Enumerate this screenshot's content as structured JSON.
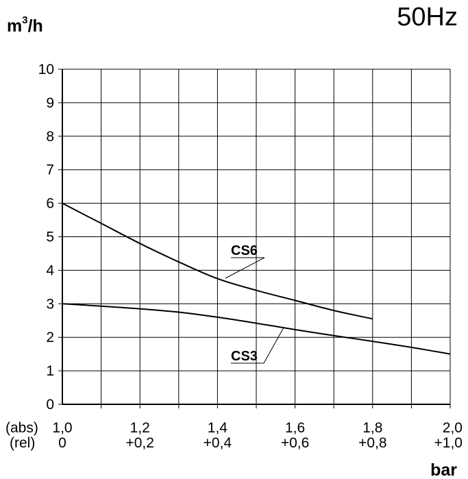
{
  "header": {
    "frequency": "50Hz"
  },
  "chart_data": {
    "type": "line",
    "ylabel_base": "m",
    "ylabel_sup": "3",
    "ylabel_tail": "/h",
    "xlabel": "bar",
    "x_abs_label": "(abs)",
    "x_rel_label": "(rel)",
    "xlim": [
      1.0,
      2.0
    ],
    "ylim": [
      0,
      10
    ],
    "grid": true,
    "y_ticks": [
      0,
      1,
      2,
      3,
      4,
      5,
      6,
      7,
      8,
      9,
      10
    ],
    "x_ticks": [
      {
        "value": 1.0,
        "abs": "1,0",
        "rel": "0"
      },
      {
        "value": 1.2,
        "abs": "1,2",
        "rel": "+0,2"
      },
      {
        "value": 1.4,
        "abs": "1,4",
        "rel": "+0,4"
      },
      {
        "value": 1.6,
        "abs": "1,6",
        "rel": "+0,6"
      },
      {
        "value": 1.8,
        "abs": "1,8",
        "rel": "+0,8"
      },
      {
        "value": 2.0,
        "abs": "2,0",
        "rel": "+1,0"
      }
    ],
    "series": [
      {
        "name": "CS6",
        "x": [
          1.0,
          1.1,
          1.2,
          1.3,
          1.4,
          1.5,
          1.6,
          1.7,
          1.8
        ],
        "y": [
          6.0,
          5.4,
          4.8,
          4.25,
          3.75,
          3.4,
          3.1,
          2.8,
          2.55
        ]
      },
      {
        "name": "CS3",
        "x": [
          1.0,
          1.1,
          1.2,
          1.3,
          1.4,
          1.5,
          1.6,
          1.7,
          1.8,
          1.9,
          2.0
        ],
        "y": [
          3.0,
          2.93,
          2.85,
          2.75,
          2.6,
          2.42,
          2.23,
          2.05,
          1.88,
          1.7,
          1.5
        ]
      }
    ]
  }
}
